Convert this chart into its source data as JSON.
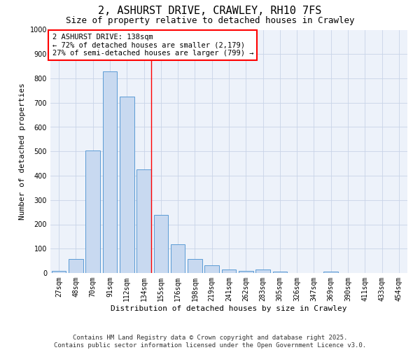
{
  "title": "2, ASHURST DRIVE, CRAWLEY, RH10 7FS",
  "subtitle": "Size of property relative to detached houses in Crawley",
  "xlabel": "Distribution of detached houses by size in Crawley",
  "ylabel": "Number of detached properties",
  "categories": [
    "27sqm",
    "48sqm",
    "70sqm",
    "91sqm",
    "112sqm",
    "134sqm",
    "155sqm",
    "176sqm",
    "198sqm",
    "219sqm",
    "241sqm",
    "262sqm",
    "283sqm",
    "305sqm",
    "326sqm",
    "347sqm",
    "369sqm",
    "390sqm",
    "411sqm",
    "433sqm",
    "454sqm"
  ],
  "values": [
    10,
    57,
    505,
    828,
    725,
    425,
    240,
    117,
    57,
    32,
    15,
    10,
    13,
    5,
    0,
    0,
    6,
    0,
    0,
    0,
    0
  ],
  "bar_color": "#c8d9f0",
  "bar_edge_color": "#5b9bd5",
  "reference_line_idx": 5,
  "annotation_text": "2 ASHURST DRIVE: 138sqm\n← 72% of detached houses are smaller (2,179)\n27% of semi-detached houses are larger (799) →",
  "annotation_box_color": "white",
  "annotation_box_edge_color": "red",
  "ylim": [
    0,
    1000
  ],
  "yticks": [
    0,
    100,
    200,
    300,
    400,
    500,
    600,
    700,
    800,
    900,
    1000
  ],
  "grid_color": "#c8d4e8",
  "bg_color": "#edf2fa",
  "footer": "Contains HM Land Registry data © Crown copyright and database right 2025.\nContains public sector information licensed under the Open Government Licence v3.0.",
  "title_fontsize": 11,
  "subtitle_fontsize": 9,
  "axis_label_fontsize": 8,
  "tick_fontsize": 7,
  "annotation_fontsize": 7.5,
  "footer_fontsize": 6.5
}
